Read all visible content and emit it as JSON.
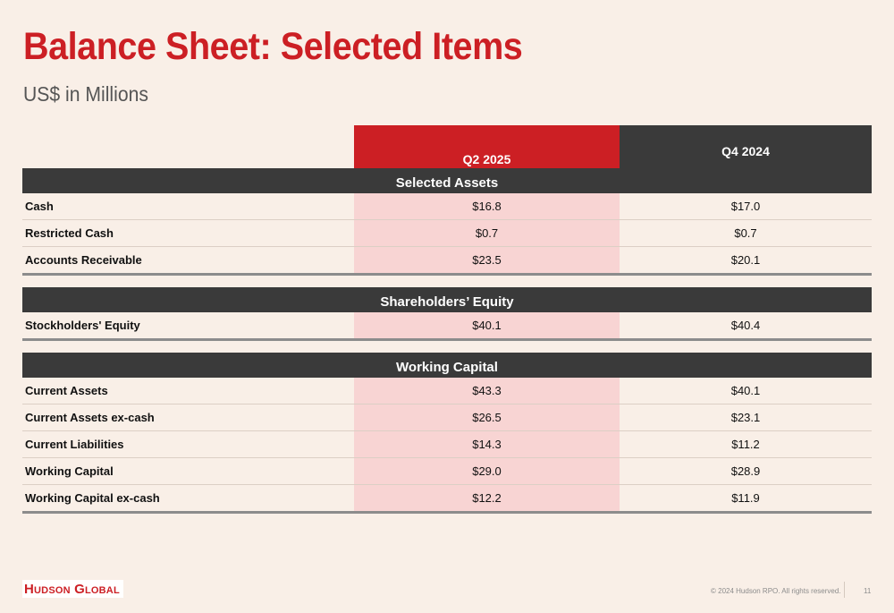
{
  "title": "Balance Sheet: Selected Items",
  "subtitle": "US$ in Millions",
  "columns": {
    "q2": "Q2 2025",
    "q4": "Q4 2024"
  },
  "sections": [
    {
      "heading": "Selected Assets",
      "rows": [
        {
          "label": "Cash",
          "q2": "$16.8",
          "q4": "$17.0"
        },
        {
          "label": "Restricted Cash",
          "q2": "$0.7",
          "q4": "$0.7"
        },
        {
          "label": "Accounts Receivable",
          "q2": "$23.5",
          "q4": "$20.1"
        }
      ]
    },
    {
      "heading": "Shareholders’ Equity",
      "rows": [
        {
          "label": "Stockholders' Equity",
          "q2": "$40.1",
          "q4": "$40.4"
        }
      ]
    },
    {
      "heading": "Working Capital",
      "rows": [
        {
          "label": "Current Assets",
          "q2": "$43.3",
          "q4": "$40.1"
        },
        {
          "label": "Current Assets ex-cash",
          "q2": "$26.5",
          "q4": "$23.1"
        },
        {
          "label": "Current Liabilities",
          "q2": "$14.3",
          "q4": "$11.2"
        },
        {
          "label": "Working Capital",
          "q2": "$29.0",
          "q4": "$28.9"
        },
        {
          "label": "Working Capital ex-cash",
          "q2": "$12.2",
          "q4": "$11.9"
        }
      ]
    }
  ],
  "footer": {
    "logo": "Hudson Global",
    "copyright": "© 2024 Hudson RPO. All rights reserved.",
    "page": "11"
  },
  "colors": {
    "accent": "#cc1f24",
    "dark": "#3a3a3a",
    "highlight": "#f8d4d3",
    "background": "#f9efe7"
  }
}
